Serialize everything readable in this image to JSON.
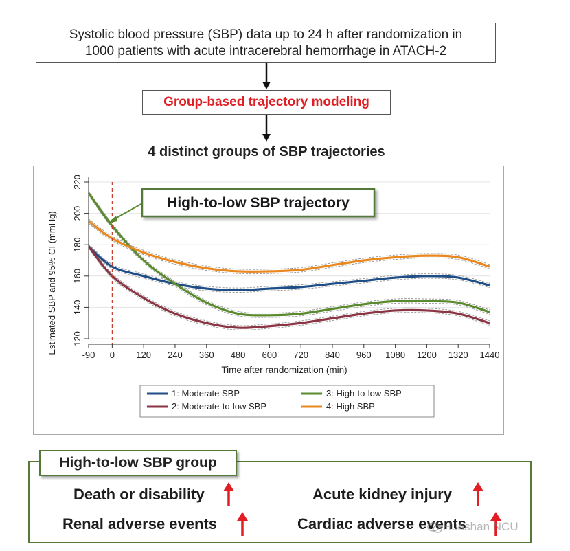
{
  "flow": {
    "top_line1": "Systolic blood pressure (SBP) data up to 24 h after randomization in",
    "top_line2": "1000 patients with acute intracerebral hemorrhage in ATACH-2",
    "method": "Group-based trajectory modeling",
    "groups_heading": "4 distinct groups of SBP trajectories",
    "callout": "High-to-low SBP trajectory"
  },
  "colors": {
    "moderate": "#1f4e86",
    "moderate_to_low": "#8b3444",
    "high_to_low": "#5a8a2e",
    "high": "#e8881e",
    "accent_red": "#e01e24",
    "frame_green": "#547a3a"
  },
  "chart_data": {
    "type": "line",
    "xlabel": "Time after randomization (min)",
    "ylabel": "Estimated SBP and 95% CI (mmHg)",
    "x_ticks": [
      -90,
      0,
      120,
      240,
      360,
      480,
      600,
      720,
      840,
      960,
      1080,
      1200,
      1320,
      1440
    ],
    "y_ticks": [
      120,
      140,
      160,
      180,
      200,
      220
    ],
    "xlim": [
      -90,
      1440
    ],
    "ylim": [
      120,
      220
    ],
    "grid": "horizontal",
    "reference_line_x": 0,
    "legend_position": "bottom",
    "x": [
      -90,
      0,
      120,
      240,
      360,
      480,
      600,
      720,
      840,
      960,
      1080,
      1200,
      1320,
      1440
    ],
    "series": [
      {
        "name": "1: Moderate SBP",
        "color_key": "moderate",
        "values": [
          179,
          166,
          160,
          155,
          152,
          151,
          152,
          153,
          155,
          157,
          159,
          160,
          159,
          154
        ]
      },
      {
        "name": "2: Moderate-to-low SBP",
        "color_key": "moderate_to_low",
        "values": [
          179,
          160,
          146,
          136,
          130,
          127,
          128,
          130,
          133,
          136,
          138,
          138,
          136,
          130
        ]
      },
      {
        "name": "3: High-to-low SBP",
        "color_key": "high_to_low",
        "values": [
          213,
          192,
          170,
          155,
          143,
          136,
          135,
          136,
          139,
          142,
          144,
          144,
          143,
          137
        ]
      },
      {
        "name": "4: High SBP",
        "color_key": "high",
        "values": [
          195,
          184,
          175,
          169,
          165,
          163,
          163,
          164,
          167,
          170,
          172,
          173,
          172,
          166
        ]
      }
    ]
  },
  "outcomes": {
    "group_label": "High-to-low SBP group",
    "items": [
      "Death or disability",
      "Acute kidney injury",
      "Renal adverse events",
      "Cardiac adverse events"
    ]
  },
  "watermark": "Huashan NCU"
}
